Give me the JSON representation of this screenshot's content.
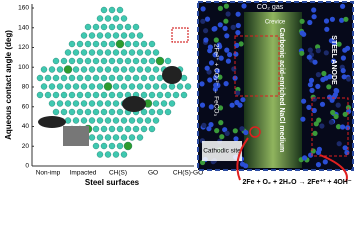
{
  "plot": {
    "y_axis_title": "Aqueous contact angle (deg)",
    "x_axis_title": "Steel surfaces",
    "y_ticks": [
      "160",
      "140",
      "120",
      "100",
      "80",
      "60",
      "40",
      "20",
      "0"
    ],
    "categories": [
      "Non-imp",
      "Impacted",
      "CH(S)",
      "GO",
      "CH(S)-GO"
    ]
  },
  "panel": {
    "gas": "CO₂ gas",
    "crevice": "Crevice",
    "medium": "Carbonic acid-enriched NaCl medium",
    "anode": "STEEL ANODE",
    "reaction": "2Fe²⁺ + CO₃²⁻ → FeCO₃",
    "cathode": "Cathodic site",
    "equation": "2Fe + O₂ + 2H₂O → 2Fe⁺² + 4OH⁻"
  }
}
